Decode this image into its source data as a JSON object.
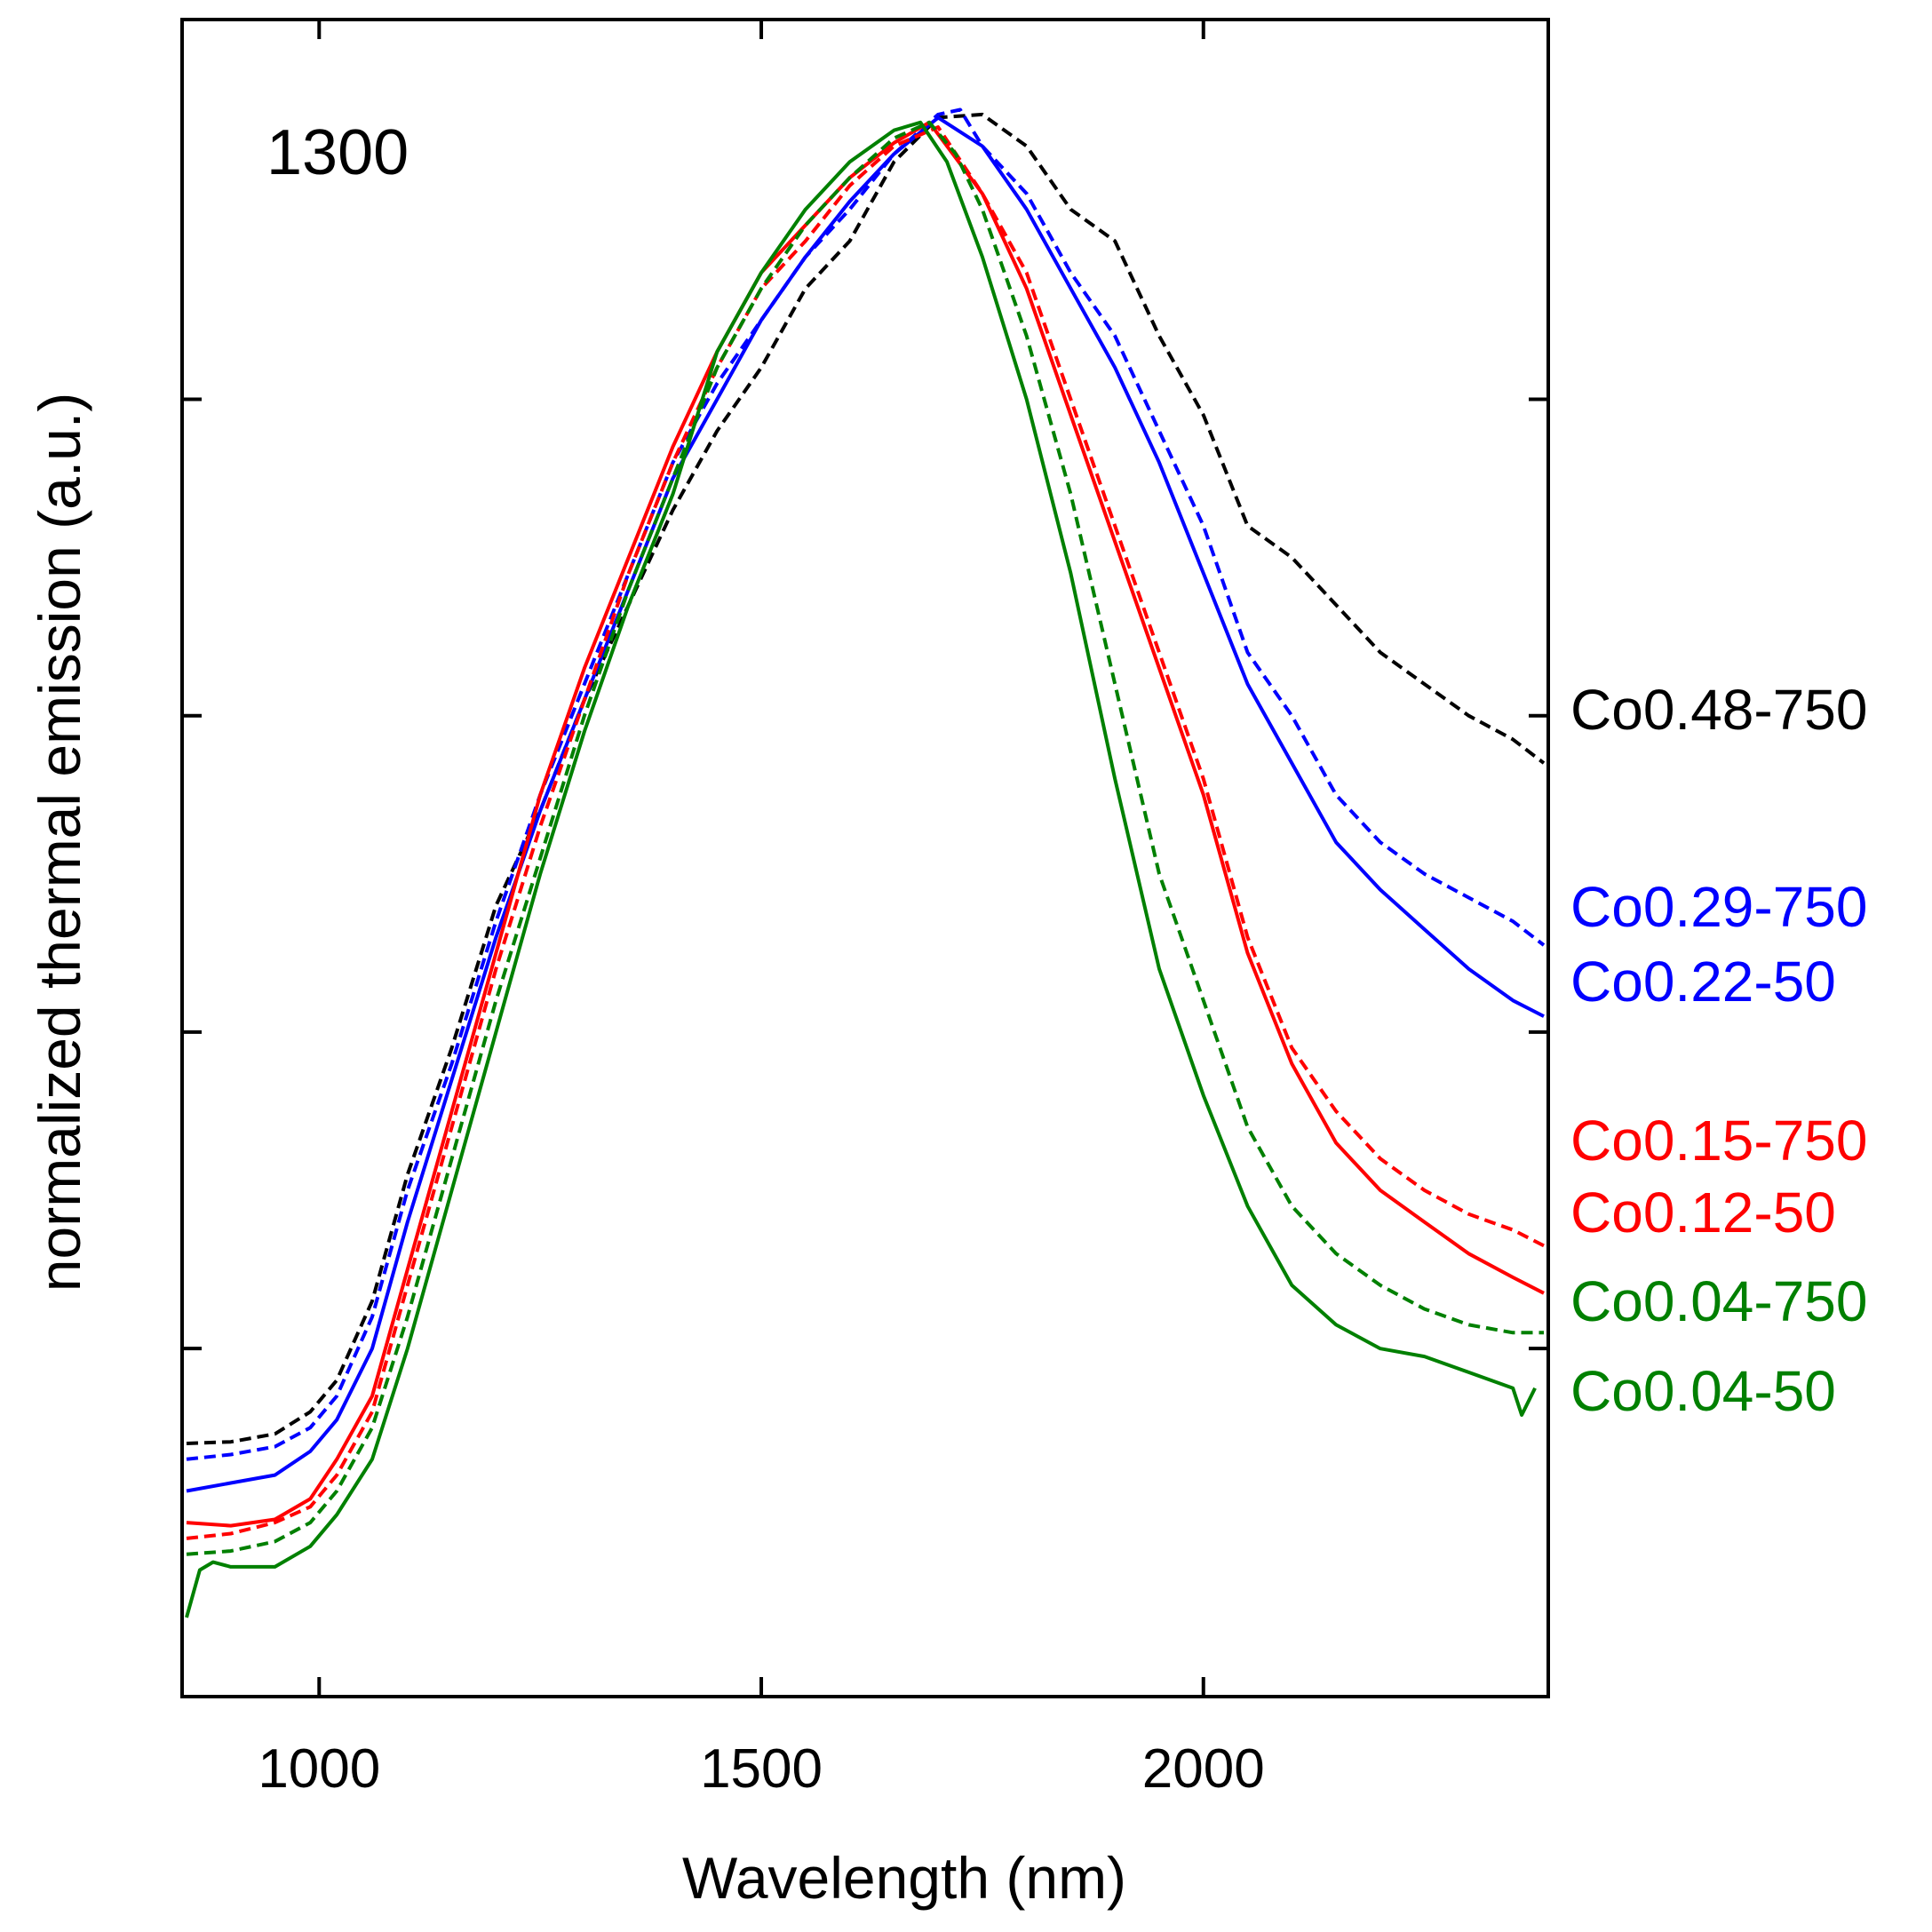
{
  "chart_data": {
    "type": "line",
    "panel_label": "1300",
    "xlabel": "Wavelength (nm)",
    "ylabel": "normalized thermal emission (a.u.)",
    "xlim": [
      845,
      2390
    ],
    "ylim": [
      -0.02,
      1.04
    ],
    "xticks": [
      1000,
      1500,
      2000
    ],
    "xtick_labels": [
      "1000",
      "1500",
      "2000"
    ],
    "yticks": [
      0.2,
      0.4,
      0.6,
      0.8
    ],
    "ytick_labels": [],
    "grid": false,
    "legend_placement": "right, outside plot at curve ends",
    "colors": {
      "black": "#000000",
      "blue": "#0000ff",
      "red": "#ff0000",
      "green": "#008000"
    },
    "series": [
      {
        "name": "Co0.48-750",
        "color": "#000000",
        "dash": true,
        "points": [
          [
            850,
            0.14
          ],
          [
            900,
            0.141
          ],
          [
            950,
            0.146
          ],
          [
            990,
            0.16
          ],
          [
            1020,
            0.18
          ],
          [
            1060,
            0.23
          ],
          [
            1100,
            0.31
          ],
          [
            1150,
            0.39
          ],
          [
            1200,
            0.48
          ],
          [
            1250,
            0.54
          ],
          [
            1300,
            0.61
          ],
          [
            1350,
            0.67
          ],
          [
            1400,
            0.73
          ],
          [
            1450,
            0.78
          ],
          [
            1500,
            0.82
          ],
          [
            1550,
            0.87
          ],
          [
            1600,
            0.9
          ],
          [
            1650,
            0.95
          ],
          [
            1700,
            0.978
          ],
          [
            1750,
            0.98
          ],
          [
            1800,
            0.96
          ],
          [
            1850,
            0.92
          ],
          [
            1900,
            0.9
          ],
          [
            1950,
            0.84
          ],
          [
            2000,
            0.79
          ],
          [
            2050,
            0.72
          ],
          [
            2100,
            0.7
          ],
          [
            2150,
            0.67
          ],
          [
            2200,
            0.64
          ],
          [
            2250,
            0.62
          ],
          [
            2300,
            0.6
          ],
          [
            2350,
            0.585
          ],
          [
            2385,
            0.57
          ]
        ]
      },
      {
        "name": "Co0.29-750",
        "color": "#0000ff",
        "dash": true,
        "points": [
          [
            850,
            0.13
          ],
          [
            900,
            0.133
          ],
          [
            950,
            0.138
          ],
          [
            990,
            0.15
          ],
          [
            1020,
            0.17
          ],
          [
            1060,
            0.22
          ],
          [
            1100,
            0.3
          ],
          [
            1150,
            0.38
          ],
          [
            1200,
            0.47
          ],
          [
            1250,
            0.55
          ],
          [
            1300,
            0.62
          ],
          [
            1350,
            0.69
          ],
          [
            1400,
            0.76
          ],
          [
            1450,
            0.81
          ],
          [
            1500,
            0.85
          ],
          [
            1550,
            0.89
          ],
          [
            1600,
            0.92
          ],
          [
            1650,
            0.955
          ],
          [
            1700,
            0.98
          ],
          [
            1725,
            0.983
          ],
          [
            1750,
            0.96
          ],
          [
            1800,
            0.93
          ],
          [
            1850,
            0.88
          ],
          [
            1900,
            0.84
          ],
          [
            1950,
            0.78
          ],
          [
            2000,
            0.72
          ],
          [
            2050,
            0.64
          ],
          [
            2100,
            0.6
          ],
          [
            2150,
            0.55
          ],
          [
            2200,
            0.52
          ],
          [
            2250,
            0.5
          ],
          [
            2300,
            0.485
          ],
          [
            2350,
            0.47
          ],
          [
            2385,
            0.455
          ]
        ]
      },
      {
        "name": "Co0.22-50",
        "color": "#0000ff",
        "dash": false,
        "points": [
          [
            850,
            0.11
          ],
          [
            900,
            0.115
          ],
          [
            950,
            0.12
          ],
          [
            990,
            0.135
          ],
          [
            1020,
            0.155
          ],
          [
            1060,
            0.2
          ],
          [
            1100,
            0.28
          ],
          [
            1150,
            0.37
          ],
          [
            1200,
            0.46
          ],
          [
            1250,
            0.54
          ],
          [
            1300,
            0.61
          ],
          [
            1350,
            0.68
          ],
          [
            1400,
            0.75
          ],
          [
            1450,
            0.8
          ],
          [
            1500,
            0.85
          ],
          [
            1550,
            0.89
          ],
          [
            1600,
            0.925
          ],
          [
            1650,
            0.955
          ],
          [
            1700,
            0.978
          ],
          [
            1750,
            0.96
          ],
          [
            1800,
            0.92
          ],
          [
            1850,
            0.87
          ],
          [
            1900,
            0.82
          ],
          [
            1950,
            0.76
          ],
          [
            2000,
            0.69
          ],
          [
            2050,
            0.62
          ],
          [
            2100,
            0.57
          ],
          [
            2150,
            0.52
          ],
          [
            2200,
            0.49
          ],
          [
            2250,
            0.465
          ],
          [
            2300,
            0.44
          ],
          [
            2350,
            0.42
          ],
          [
            2385,
            0.41
          ]
        ]
      },
      {
        "name": "Co0.15-750",
        "color": "#ff0000",
        "dash": true,
        "points": [
          [
            850,
            0.08
          ],
          [
            900,
            0.083
          ],
          [
            950,
            0.09
          ],
          [
            990,
            0.1
          ],
          [
            1020,
            0.12
          ],
          [
            1060,
            0.16
          ],
          [
            1100,
            0.24
          ],
          [
            1150,
            0.34
          ],
          [
            1200,
            0.44
          ],
          [
            1250,
            0.53
          ],
          [
            1300,
            0.61
          ],
          [
            1350,
            0.69
          ],
          [
            1400,
            0.76
          ],
          [
            1450,
            0.82
          ],
          [
            1500,
            0.87
          ],
          [
            1550,
            0.9
          ],
          [
            1600,
            0.935
          ],
          [
            1650,
            0.96
          ],
          [
            1700,
            0.972
          ],
          [
            1750,
            0.93
          ],
          [
            1800,
            0.88
          ],
          [
            1850,
            0.8
          ],
          [
            1900,
            0.72
          ],
          [
            1950,
            0.64
          ],
          [
            2000,
            0.56
          ],
          [
            2050,
            0.46
          ],
          [
            2100,
            0.39
          ],
          [
            2150,
            0.35
          ],
          [
            2200,
            0.32
          ],
          [
            2250,
            0.3
          ],
          [
            2300,
            0.285
          ],
          [
            2350,
            0.275
          ],
          [
            2385,
            0.265
          ]
        ]
      },
      {
        "name": "Co0.12-50",
        "color": "#ff0000",
        "dash": false,
        "points": [
          [
            850,
            0.09
          ],
          [
            900,
            0.088
          ],
          [
            950,
            0.092
          ],
          [
            990,
            0.105
          ],
          [
            1020,
            0.13
          ],
          [
            1060,
            0.17
          ],
          [
            1100,
            0.25
          ],
          [
            1150,
            0.35
          ],
          [
            1200,
            0.45
          ],
          [
            1250,
            0.55
          ],
          [
            1300,
            0.63
          ],
          [
            1350,
            0.7
          ],
          [
            1400,
            0.77
          ],
          [
            1450,
            0.83
          ],
          [
            1500,
            0.88
          ],
          [
            1550,
            0.91
          ],
          [
            1600,
            0.94
          ],
          [
            1650,
            0.962
          ],
          [
            1690,
            0.975
          ],
          [
            1750,
            0.93
          ],
          [
            1800,
            0.87
          ],
          [
            1850,
            0.79
          ],
          [
            1900,
            0.71
          ],
          [
            1950,
            0.63
          ],
          [
            2000,
            0.55
          ],
          [
            2050,
            0.45
          ],
          [
            2100,
            0.38
          ],
          [
            2150,
            0.33
          ],
          [
            2200,
            0.3
          ],
          [
            2250,
            0.28
          ],
          [
            2300,
            0.26
          ],
          [
            2350,
            0.245
          ],
          [
            2385,
            0.235
          ]
        ]
      },
      {
        "name": "Co0.04-750",
        "color": "#008000",
        "dash": true,
        "points": [
          [
            850,
            0.07
          ],
          [
            900,
            0.072
          ],
          [
            950,
            0.078
          ],
          [
            990,
            0.09
          ],
          [
            1020,
            0.11
          ],
          [
            1060,
            0.15
          ],
          [
            1100,
            0.22
          ],
          [
            1150,
            0.32
          ],
          [
            1200,
            0.42
          ],
          [
            1250,
            0.51
          ],
          [
            1300,
            0.6
          ],
          [
            1350,
            0.68
          ],
          [
            1400,
            0.75
          ],
          [
            1450,
            0.82
          ],
          [
            1500,
            0.87
          ],
          [
            1550,
            0.91
          ],
          [
            1600,
            0.94
          ],
          [
            1650,
            0.965
          ],
          [
            1690,
            0.975
          ],
          [
            1720,
            0.955
          ],
          [
            1750,
            0.92
          ],
          [
            1800,
            0.84
          ],
          [
            1850,
            0.74
          ],
          [
            1900,
            0.62
          ],
          [
            1950,
            0.5
          ],
          [
            2000,
            0.42
          ],
          [
            2050,
            0.34
          ],
          [
            2100,
            0.29
          ],
          [
            2150,
            0.26
          ],
          [
            2200,
            0.24
          ],
          [
            2250,
            0.225
          ],
          [
            2300,
            0.215
          ],
          [
            2350,
            0.21
          ],
          [
            2385,
            0.21
          ]
        ]
      },
      {
        "name": "Co0.04-50",
        "color": "#008000",
        "dash": false,
        "points": [
          [
            850,
            0.03
          ],
          [
            865,
            0.06
          ],
          [
            880,
            0.065
          ],
          [
            900,
            0.062
          ],
          [
            950,
            0.062
          ],
          [
            990,
            0.075
          ],
          [
            1020,
            0.095
          ],
          [
            1060,
            0.13
          ],
          [
            1100,
            0.2
          ],
          [
            1150,
            0.3
          ],
          [
            1200,
            0.4
          ],
          [
            1250,
            0.5
          ],
          [
            1300,
            0.59
          ],
          [
            1350,
            0.67
          ],
          [
            1400,
            0.74
          ],
          [
            1450,
            0.83
          ],
          [
            1500,
            0.88
          ],
          [
            1550,
            0.92
          ],
          [
            1600,
            0.95
          ],
          [
            1650,
            0.97
          ],
          [
            1680,
            0.975
          ],
          [
            1710,
            0.95
          ],
          [
            1750,
            0.89
          ],
          [
            1800,
            0.8
          ],
          [
            1850,
            0.69
          ],
          [
            1900,
            0.56
          ],
          [
            1950,
            0.44
          ],
          [
            2000,
            0.36
          ],
          [
            2050,
            0.29
          ],
          [
            2100,
            0.24
          ],
          [
            2150,
            0.215
          ],
          [
            2200,
            0.2
          ],
          [
            2250,
            0.195
          ],
          [
            2300,
            0.185
          ],
          [
            2350,
            0.175
          ],
          [
            2360,
            0.158
          ],
          [
            2375,
            0.175
          ]
        ]
      }
    ],
    "legend_labels": [
      {
        "text": "Co0.48-750",
        "color": "#000000"
      },
      {
        "text": "Co0.29-750",
        "color": "#0000ff"
      },
      {
        "text": "Co0.22-50",
        "color": "#0000ff"
      },
      {
        "text": "Co0.15-750",
        "color": "#ff0000"
      },
      {
        "text": "Co0.12-50",
        "color": "#ff0000"
      },
      {
        "text": "Co0.04-750",
        "color": "#008000"
      },
      {
        "text": "Co0.04-50",
        "color": "#008000"
      }
    ]
  }
}
